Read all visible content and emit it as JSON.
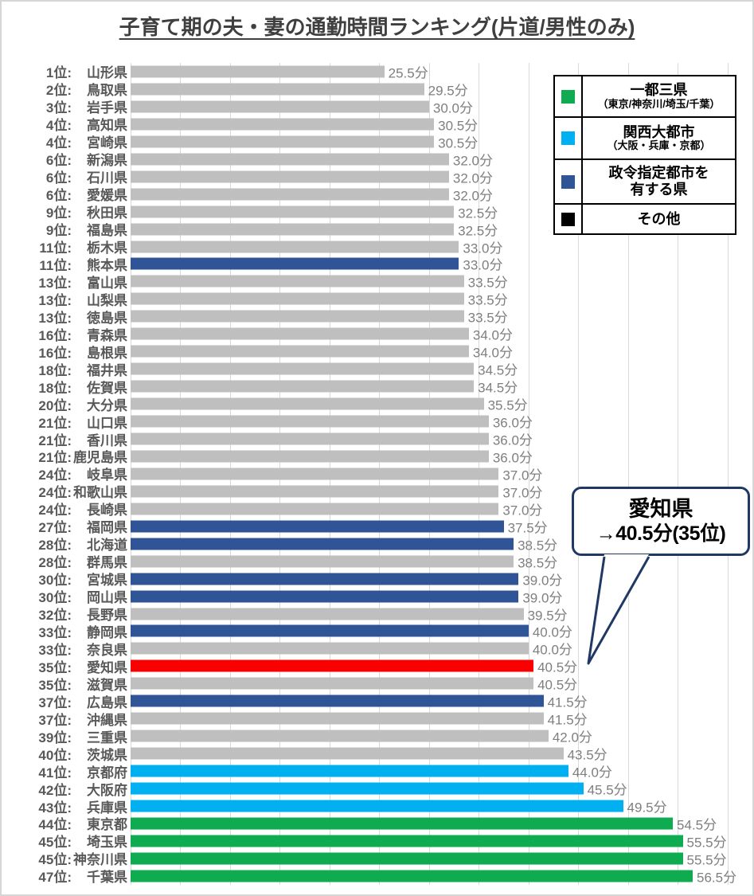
{
  "title": "子育て期の夫・妻の通勤時間ランキング(片道/男性のみ)",
  "colors": {
    "other": "#BFBFBF",
    "designated": "#2F5597",
    "kansai": "#00B0F0",
    "tokyo3": "#0FAB50",
    "highlight": "#FA0000",
    "gridline": "#D9D9D9",
    "callout_border": "#1F3864",
    "legend_other_swatch": "#000000"
  },
  "chart_data": {
    "type": "bar",
    "orientation": "horizontal",
    "title": "子育て期の夫・妻の通勤時間ランキング(片道/男性のみ)",
    "value_unit": "分",
    "xlim": [
      0,
      62.5
    ],
    "gridline_step": 5,
    "grid": "on",
    "rows": [
      {
        "rank": "1位:",
        "prefecture": "山形県",
        "value": 25.5,
        "value_label": "25.5分",
        "category": "other"
      },
      {
        "rank": "2位:",
        "prefecture": "鳥取県",
        "value": 29.5,
        "value_label": "29.5分",
        "category": "other"
      },
      {
        "rank": "3位:",
        "prefecture": "岩手県",
        "value": 30.0,
        "value_label": "30.0分",
        "category": "other"
      },
      {
        "rank": "4位:",
        "prefecture": "高知県",
        "value": 30.5,
        "value_label": "30.5分",
        "category": "other"
      },
      {
        "rank": "4位:",
        "prefecture": "宮崎県",
        "value": 30.5,
        "value_label": "30.5分",
        "category": "other"
      },
      {
        "rank": "6位:",
        "prefecture": "新潟県",
        "value": 32.0,
        "value_label": "32.0分",
        "category": "other"
      },
      {
        "rank": "6位:",
        "prefecture": "石川県",
        "value": 32.0,
        "value_label": "32.0分",
        "category": "other"
      },
      {
        "rank": "6位:",
        "prefecture": "愛媛県",
        "value": 32.0,
        "value_label": "32.0分",
        "category": "other"
      },
      {
        "rank": "9位:",
        "prefecture": "秋田県",
        "value": 32.5,
        "value_label": "32.5分",
        "category": "other"
      },
      {
        "rank": "9位:",
        "prefecture": "福島県",
        "value": 32.5,
        "value_label": "32.5分",
        "category": "other"
      },
      {
        "rank": "11位:",
        "prefecture": "栃木県",
        "value": 33.0,
        "value_label": "33.0分",
        "category": "other"
      },
      {
        "rank": "11位:",
        "prefecture": "熊本県",
        "value": 33.0,
        "value_label": "33.0分",
        "category": "designated"
      },
      {
        "rank": "13位:",
        "prefecture": "富山県",
        "value": 33.5,
        "value_label": "33.5分",
        "category": "other"
      },
      {
        "rank": "13位:",
        "prefecture": "山梨県",
        "value": 33.5,
        "value_label": "33.5分",
        "category": "other"
      },
      {
        "rank": "13位:",
        "prefecture": "徳島県",
        "value": 33.5,
        "value_label": "33.5分",
        "category": "other"
      },
      {
        "rank": "16位:",
        "prefecture": "青森県",
        "value": 34.0,
        "value_label": "34.0分",
        "category": "other"
      },
      {
        "rank": "16位:",
        "prefecture": "島根県",
        "value": 34.0,
        "value_label": "34.0分",
        "category": "other"
      },
      {
        "rank": "18位:",
        "prefecture": "福井県",
        "value": 34.5,
        "value_label": "34.5分",
        "category": "other"
      },
      {
        "rank": "18位:",
        "prefecture": "佐賀県",
        "value": 34.5,
        "value_label": "34.5分",
        "category": "other"
      },
      {
        "rank": "20位:",
        "prefecture": "大分県",
        "value": 35.5,
        "value_label": "35.5分",
        "category": "other"
      },
      {
        "rank": "21位:",
        "prefecture": "山口県",
        "value": 36.0,
        "value_label": "36.0分",
        "category": "other"
      },
      {
        "rank": "21位:",
        "prefecture": "香川県",
        "value": 36.0,
        "value_label": "36.0分",
        "category": "other"
      },
      {
        "rank": "21位:",
        "prefecture": "鹿児島県",
        "value": 36.0,
        "value_label": "36.0分",
        "category": "other"
      },
      {
        "rank": "24位:",
        "prefecture": "岐阜県",
        "value": 37.0,
        "value_label": "37.0分",
        "category": "other"
      },
      {
        "rank": "24位:",
        "prefecture": "和歌山県",
        "value": 37.0,
        "value_label": "37.0分",
        "category": "other"
      },
      {
        "rank": "24位:",
        "prefecture": "長崎県",
        "value": 37.0,
        "value_label": "37.0分",
        "category": "other"
      },
      {
        "rank": "27位:",
        "prefecture": "福岡県",
        "value": 37.5,
        "value_label": "37.5分",
        "category": "designated"
      },
      {
        "rank": "28位:",
        "prefecture": "北海道",
        "value": 38.5,
        "value_label": "38.5分",
        "category": "designated"
      },
      {
        "rank": "28位:",
        "prefecture": "群馬県",
        "value": 38.5,
        "value_label": "38.5分",
        "category": "other"
      },
      {
        "rank": "30位:",
        "prefecture": "宮城県",
        "value": 39.0,
        "value_label": "39.0分",
        "category": "designated"
      },
      {
        "rank": "30位:",
        "prefecture": "岡山県",
        "value": 39.0,
        "value_label": "39.0分",
        "category": "designated"
      },
      {
        "rank": "32位:",
        "prefecture": "長野県",
        "value": 39.5,
        "value_label": "39.5分",
        "category": "other"
      },
      {
        "rank": "33位:",
        "prefecture": "静岡県",
        "value": 40.0,
        "value_label": "40.0分",
        "category": "designated"
      },
      {
        "rank": "33位:",
        "prefecture": "奈良県",
        "value": 40.0,
        "value_label": "40.0分",
        "category": "other"
      },
      {
        "rank": "35位:",
        "prefecture": "愛知県",
        "value": 40.5,
        "value_label": "40.5分",
        "category": "highlight"
      },
      {
        "rank": "35位:",
        "prefecture": "滋賀県",
        "value": 40.5,
        "value_label": "40.5分",
        "category": "other"
      },
      {
        "rank": "37位:",
        "prefecture": "広島県",
        "value": 41.5,
        "value_label": "41.5分",
        "category": "designated"
      },
      {
        "rank": "37位:",
        "prefecture": "沖縄県",
        "value": 41.5,
        "value_label": "41.5分",
        "category": "other"
      },
      {
        "rank": "39位:",
        "prefecture": "三重県",
        "value": 42.0,
        "value_label": "42.0分",
        "category": "other"
      },
      {
        "rank": "40位:",
        "prefecture": "茨城県",
        "value": 43.5,
        "value_label": "43.5分",
        "category": "other"
      },
      {
        "rank": "41位:",
        "prefecture": "京都府",
        "value": 44.0,
        "value_label": "44.0分",
        "category": "kansai"
      },
      {
        "rank": "42位:",
        "prefecture": "大阪府",
        "value": 45.5,
        "value_label": "45.5分",
        "category": "kansai"
      },
      {
        "rank": "43位:",
        "prefecture": "兵庫県",
        "value": 49.5,
        "value_label": "49.5分",
        "category": "kansai"
      },
      {
        "rank": "44位:",
        "prefecture": "東京都",
        "value": 54.5,
        "value_label": "54.5分",
        "category": "tokyo3"
      },
      {
        "rank": "45位:",
        "prefecture": "埼玉県",
        "value": 55.5,
        "value_label": "55.5分",
        "category": "tokyo3"
      },
      {
        "rank": "45位:",
        "prefecture": "神奈川県",
        "value": 55.5,
        "value_label": "55.5分",
        "category": "tokyo3"
      },
      {
        "rank": "47位:",
        "prefecture": "千葉県",
        "value": 56.5,
        "value_label": "56.5分",
        "category": "tokyo3"
      }
    ]
  },
  "legend": {
    "items": [
      {
        "swatch": "#0FAB50",
        "label": "一都三県",
        "sub": "（東京/神奈川/埼玉/千葉）"
      },
      {
        "swatch": "#00B0F0",
        "label": "関西大都市",
        "sub": "（大阪・兵庫・京都）"
      },
      {
        "swatch": "#2F5597",
        "label": "政令指定都市を",
        "label2": "有する県"
      },
      {
        "swatch": "#000000",
        "label": "その他"
      }
    ]
  },
  "callout": {
    "line1": "愛知県",
    "line2": "→40.5分(35位)"
  }
}
